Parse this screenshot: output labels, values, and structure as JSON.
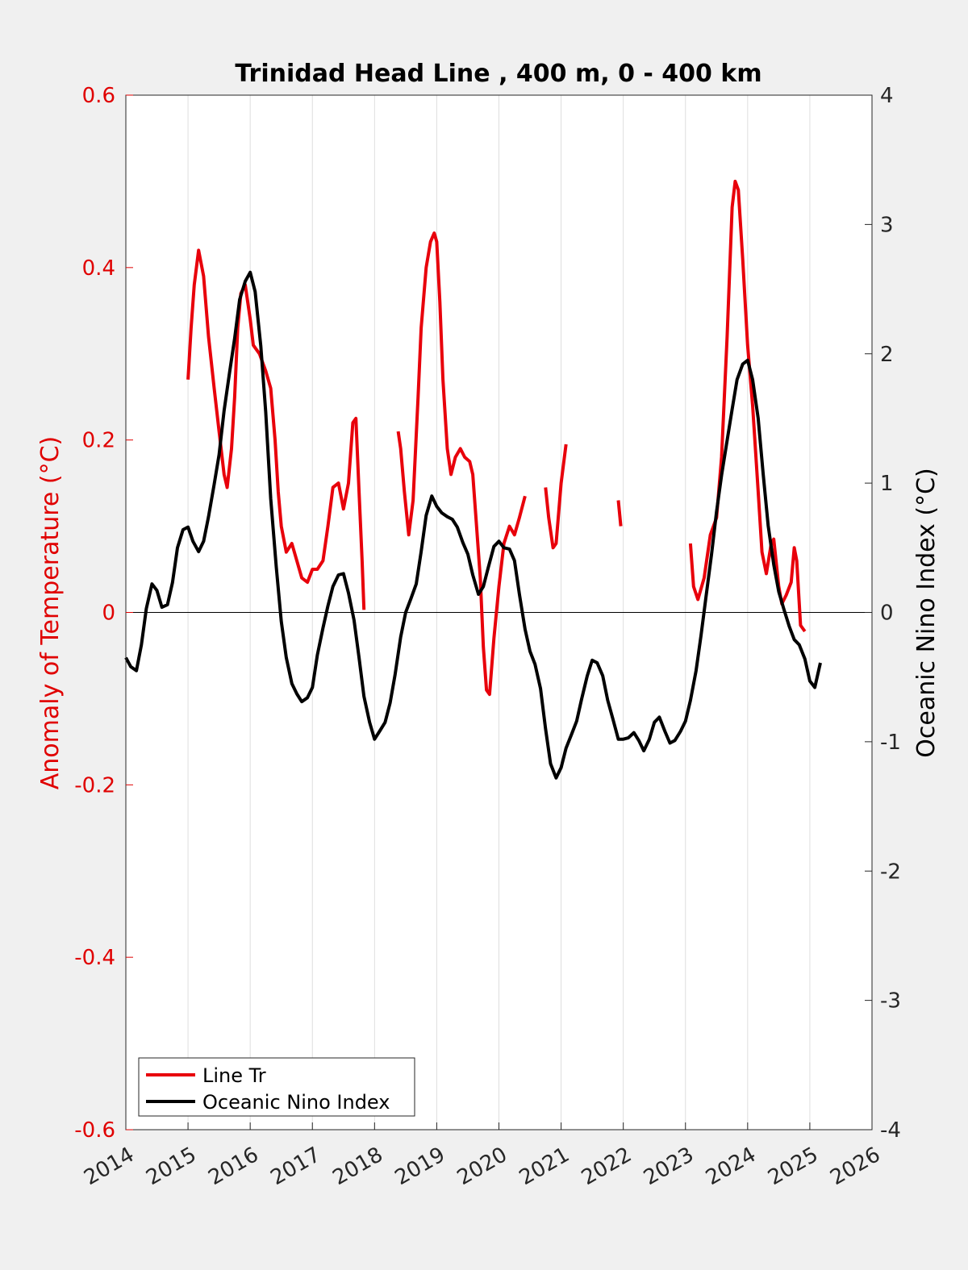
{
  "chart_data": {
    "type": "line",
    "title": "Trinidad Head Line , 400 m, 0 - 400 km",
    "xlabel": "",
    "ylabel_left": "Anomaly of Temperature (°C)",
    "ylabel_right": "Oceanic Nino Index (°C)",
    "xlim": [
      2014,
      2026
    ],
    "ylim_left": [
      -0.6,
      0.6
    ],
    "ylim_right": [
      -4,
      4
    ],
    "x_ticks": [
      2014,
      2015,
      2016,
      2017,
      2018,
      2019,
      2020,
      2021,
      2022,
      2023,
      2024,
      2025,
      2026
    ],
    "x_tick_labels": [
      "2014",
      "2015",
      "2016",
      "2017",
      "2018",
      "2019",
      "2020",
      "2021",
      "2022",
      "2023",
      "2024",
      "2025",
      "2026"
    ],
    "y_ticks_left": [
      -0.6,
      -0.4,
      -0.2,
      0,
      0.2,
      0.4,
      0.6
    ],
    "y_tick_labels_left": [
      "-0.6",
      "-0.4",
      "-0.2",
      "0",
      "0.2",
      "0.4",
      "0.6"
    ],
    "y_ticks_right": [
      -4,
      -3,
      -2,
      -1,
      0,
      1,
      2,
      3,
      4
    ],
    "y_tick_labels_right": [
      "-4",
      "-3",
      "-2",
      "-1",
      "0",
      "1",
      "2",
      "3",
      "4"
    ],
    "grid": "vertical",
    "legend_position": "bottom-left",
    "colors": {
      "left_axis": "#e00000",
      "right_axis": "#000000",
      "background": "#f0f0f0",
      "plot_background": "#ffffff",
      "grid": "#dedede"
    },
    "series": [
      {
        "name": "Line Tr",
        "axis": "left",
        "color": "#e8000b",
        "segments": [
          [
            [
              2015.0,
              0.27
            ],
            [
              2015.05,
              0.33
            ],
            [
              2015.1,
              0.38
            ],
            [
              2015.17,
              0.42
            ],
            [
              2015.25,
              0.39
            ],
            [
              2015.33,
              0.32
            ],
            [
              2015.42,
              0.26
            ],
            [
              2015.5,
              0.21
            ],
            [
              2015.58,
              0.16
            ],
            [
              2015.63,
              0.145
            ],
            [
              2015.7,
              0.19
            ],
            [
              2015.75,
              0.25
            ],
            [
              2015.8,
              0.33
            ],
            [
              2015.85,
              0.37
            ],
            [
              2015.92,
              0.38
            ],
            [
              2016.0,
              0.34
            ],
            [
              2016.05,
              0.31
            ],
            [
              2016.15,
              0.3
            ],
            [
              2016.25,
              0.28
            ],
            [
              2016.33,
              0.26
            ],
            [
              2016.4,
              0.2
            ],
            [
              2016.45,
              0.14
            ],
            [
              2016.5,
              0.1
            ],
            [
              2016.58,
              0.07
            ],
            [
              2016.67,
              0.08
            ],
            [
              2016.75,
              0.06
            ],
            [
              2016.83,
              0.04
            ],
            [
              2016.92,
              0.035
            ],
            [
              2017.0,
              0.05
            ],
            [
              2017.08,
              0.05
            ],
            [
              2017.17,
              0.06
            ],
            [
              2017.25,
              0.1
            ],
            [
              2017.33,
              0.145
            ],
            [
              2017.42,
              0.15
            ],
            [
              2017.5,
              0.12
            ],
            [
              2017.58,
              0.15
            ],
            [
              2017.65,
              0.22
            ],
            [
              2017.7,
              0.225
            ],
            [
              2017.75,
              0.14
            ],
            [
              2017.8,
              0.06
            ],
            [
              2017.83,
              0.003
            ]
          ],
          [
            [
              2018.38,
              0.21
            ],
            [
              2018.42,
              0.19
            ],
            [
              2018.48,
              0.14
            ],
            [
              2018.55,
              0.09
            ],
            [
              2018.62,
              0.13
            ],
            [
              2018.7,
              0.25
            ],
            [
              2018.75,
              0.33
            ],
            [
              2018.83,
              0.4
            ],
            [
              2018.9,
              0.43
            ],
            [
              2018.96,
              0.44
            ],
            [
              2019.0,
              0.43
            ],
            [
              2019.05,
              0.36
            ],
            [
              2019.1,
              0.27
            ],
            [
              2019.17,
              0.19
            ],
            [
              2019.23,
              0.16
            ],
            [
              2019.3,
              0.18
            ],
            [
              2019.38,
              0.19
            ],
            [
              2019.45,
              0.18
            ],
            [
              2019.53,
              0.175
            ],
            [
              2019.58,
              0.16
            ],
            [
              2019.63,
              0.11
            ],
            [
              2019.7,
              0.04
            ],
            [
              2019.75,
              -0.04
            ],
            [
              2019.8,
              -0.09
            ],
            [
              2019.85,
              -0.095
            ],
            [
              2019.92,
              -0.03
            ],
            [
              2020.0,
              0.03
            ],
            [
              2020.08,
              0.08
            ],
            [
              2020.17,
              0.1
            ],
            [
              2020.25,
              0.09
            ],
            [
              2020.33,
              0.11
            ],
            [
              2020.42,
              0.135
            ]
          ],
          [
            [
              2020.75,
              0.145
            ],
            [
              2020.8,
              0.11
            ],
            [
              2020.87,
              0.075
            ],
            [
              2020.92,
              0.08
            ],
            [
              2021.0,
              0.15
            ],
            [
              2021.08,
              0.195
            ]
          ],
          [
            [
              2021.92,
              0.13
            ],
            [
              2021.96,
              0.1
            ]
          ],
          [
            [
              2023.08,
              0.08
            ],
            [
              2023.13,
              0.03
            ],
            [
              2023.2,
              0.015
            ],
            [
              2023.3,
              0.04
            ],
            [
              2023.4,
              0.09
            ],
            [
              2023.5,
              0.11
            ],
            [
              2023.58,
              0.18
            ],
            [
              2023.67,
              0.32
            ],
            [
              2023.75,
              0.47
            ],
            [
              2023.8,
              0.5
            ],
            [
              2023.85,
              0.49
            ],
            [
              2023.92,
              0.41
            ],
            [
              2024.0,
              0.31
            ],
            [
              2024.08,
              0.24
            ],
            [
              2024.17,
              0.14
            ],
            [
              2024.23,
              0.07
            ],
            [
              2024.3,
              0.045
            ],
            [
              2024.38,
              0.08
            ],
            [
              2024.42,
              0.085
            ],
            [
              2024.5,
              0.03
            ],
            [
              2024.55,
              0.01
            ],
            [
              2024.62,
              0.02
            ],
            [
              2024.7,
              0.035
            ],
            [
              2024.75,
              0.075
            ],
            [
              2024.79,
              0.06
            ],
            [
              2024.85,
              -0.015
            ],
            [
              2024.92,
              -0.022
            ]
          ]
        ]
      },
      {
        "name": "Oceanic Nino Index",
        "axis": "right",
        "color": "#000000",
        "segments": [
          [
            [
              2014.0,
              -0.35
            ],
            [
              2014.08,
              -0.42
            ],
            [
              2014.17,
              -0.45
            ],
            [
              2014.25,
              -0.25
            ],
            [
              2014.33,
              0.03
            ],
            [
              2014.42,
              0.22
            ],
            [
              2014.5,
              0.17
            ],
            [
              2014.58,
              0.04
            ],
            [
              2014.67,
              0.06
            ],
            [
              2014.75,
              0.23
            ],
            [
              2014.83,
              0.5
            ],
            [
              2014.92,
              0.64
            ],
            [
              2015.0,
              0.66
            ],
            [
              2015.08,
              0.55
            ],
            [
              2015.17,
              0.47
            ],
            [
              2015.25,
              0.55
            ],
            [
              2015.33,
              0.74
            ],
            [
              2015.42,
              0.99
            ],
            [
              2015.5,
              1.22
            ],
            [
              2015.58,
              1.56
            ],
            [
              2015.67,
              1.86
            ],
            [
              2015.75,
              2.12
            ],
            [
              2015.83,
              2.42
            ],
            [
              2015.92,
              2.56
            ],
            [
              2016.0,
              2.63
            ],
            [
              2016.08,
              2.48
            ],
            [
              2016.17,
              2.06
            ],
            [
              2016.25,
              1.55
            ],
            [
              2016.33,
              0.88
            ],
            [
              2016.42,
              0.35
            ],
            [
              2016.5,
              -0.07
            ],
            [
              2016.58,
              -0.35
            ],
            [
              2016.67,
              -0.55
            ],
            [
              2016.75,
              -0.63
            ],
            [
              2016.83,
              -0.69
            ],
            [
              2016.92,
              -0.66
            ],
            [
              2017.0,
              -0.58
            ],
            [
              2017.08,
              -0.33
            ],
            [
              2017.17,
              -0.12
            ],
            [
              2017.25,
              0.05
            ],
            [
              2017.33,
              0.2
            ],
            [
              2017.42,
              0.29
            ],
            [
              2017.5,
              0.3
            ],
            [
              2017.58,
              0.15
            ],
            [
              2017.67,
              -0.06
            ],
            [
              2017.75,
              -0.35
            ],
            [
              2017.83,
              -0.65
            ],
            [
              2017.92,
              -0.85
            ],
            [
              2018.0,
              -0.98
            ],
            [
              2018.08,
              -0.92
            ],
            [
              2018.17,
              -0.85
            ],
            [
              2018.25,
              -0.7
            ],
            [
              2018.33,
              -0.48
            ],
            [
              2018.42,
              -0.19
            ],
            [
              2018.5,
              0.0
            ],
            [
              2018.58,
              0.1
            ],
            [
              2018.67,
              0.22
            ],
            [
              2018.75,
              0.47
            ],
            [
              2018.83,
              0.75
            ],
            [
              2018.92,
              0.9
            ],
            [
              2019.0,
              0.82
            ],
            [
              2019.08,
              0.77
            ],
            [
              2019.17,
              0.74
            ],
            [
              2019.25,
              0.72
            ],
            [
              2019.33,
              0.66
            ],
            [
              2019.42,
              0.54
            ],
            [
              2019.5,
              0.45
            ],
            [
              2019.58,
              0.29
            ],
            [
              2019.67,
              0.14
            ],
            [
              2019.75,
              0.2
            ],
            [
              2019.83,
              0.35
            ],
            [
              2019.92,
              0.51
            ],
            [
              2020.0,
              0.55
            ],
            [
              2020.08,
              0.5
            ],
            [
              2020.17,
              0.49
            ],
            [
              2020.25,
              0.4
            ],
            [
              2020.33,
              0.14
            ],
            [
              2020.42,
              -0.13
            ],
            [
              2020.5,
              -0.3
            ],
            [
              2020.58,
              -0.4
            ],
            [
              2020.67,
              -0.59
            ],
            [
              2020.75,
              -0.9
            ],
            [
              2020.83,
              -1.17
            ],
            [
              2020.92,
              -1.28
            ],
            [
              2021.0,
              -1.2
            ],
            [
              2021.08,
              -1.05
            ],
            [
              2021.17,
              -0.94
            ],
            [
              2021.25,
              -0.84
            ],
            [
              2021.33,
              -0.67
            ],
            [
              2021.42,
              -0.49
            ],
            [
              2021.5,
              -0.37
            ],
            [
              2021.58,
              -0.39
            ],
            [
              2021.67,
              -0.49
            ],
            [
              2021.75,
              -0.68
            ],
            [
              2021.83,
              -0.82
            ],
            [
              2021.92,
              -0.98
            ],
            [
              2022.0,
              -0.98
            ],
            [
              2022.08,
              -0.97
            ],
            [
              2022.17,
              -0.93
            ],
            [
              2022.25,
              -0.99
            ],
            [
              2022.33,
              -1.07
            ],
            [
              2022.42,
              -0.98
            ],
            [
              2022.5,
              -0.85
            ],
            [
              2022.58,
              -0.81
            ],
            [
              2022.67,
              -0.92
            ],
            [
              2022.75,
              -1.01
            ],
            [
              2022.83,
              -0.99
            ],
            [
              2022.92,
              -0.92
            ],
            [
              2023.0,
              -0.84
            ],
            [
              2023.08,
              -0.68
            ],
            [
              2023.17,
              -0.45
            ],
            [
              2023.25,
              -0.18
            ],
            [
              2023.33,
              0.12
            ],
            [
              2023.42,
              0.45
            ],
            [
              2023.5,
              0.78
            ],
            [
              2023.58,
              1.06
            ],
            [
              2023.67,
              1.33
            ],
            [
              2023.75,
              1.57
            ],
            [
              2023.83,
              1.8
            ],
            [
              2023.92,
              1.92
            ],
            [
              2024.0,
              1.95
            ],
            [
              2024.08,
              1.8
            ],
            [
              2024.17,
              1.5
            ],
            [
              2024.25,
              1.07
            ],
            [
              2024.33,
              0.67
            ],
            [
              2024.42,
              0.37
            ],
            [
              2024.5,
              0.16
            ],
            [
              2024.58,
              0.03
            ],
            [
              2024.67,
              -0.11
            ],
            [
              2024.75,
              -0.21
            ],
            [
              2024.83,
              -0.25
            ],
            [
              2024.92,
              -0.36
            ],
            [
              2025.0,
              -0.53
            ],
            [
              2025.08,
              -0.58
            ],
            [
              2025.17,
              -0.39
            ]
          ]
        ]
      }
    ]
  }
}
